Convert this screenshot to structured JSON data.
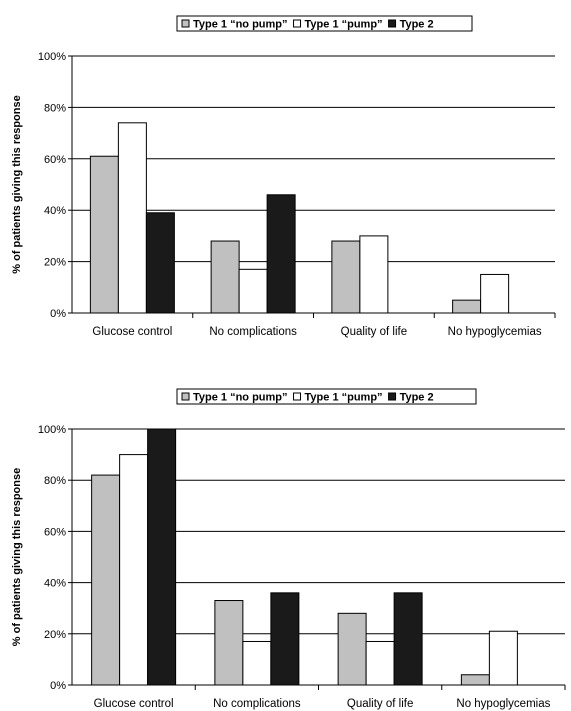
{
  "chart_data": [
    {
      "type": "bar",
      "categories": [
        "Glucose control",
        "No complications",
        "Quality of life",
        "No hypoglycemias"
      ],
      "series": [
        {
          "name": "Type 1 “no pump”",
          "color": "#c0c0c0",
          "values": [
            61,
            28,
            28,
            5
          ]
        },
        {
          "name": "Type 1 “pump”",
          "color": "#ffffff",
          "values": [
            74,
            17,
            30,
            15
          ]
        },
        {
          "name": "Type 2",
          "color": "#1a1a1a",
          "values": [
            39,
            46,
            0,
            0
          ]
        }
      ],
      "ylabel": "% of patients giving this response",
      "yticks": [
        "0%",
        "20%",
        "40%",
        "60%",
        "80%",
        "100%"
      ],
      "ylim": [
        0,
        100
      ],
      "grid": true,
      "legend": "top"
    },
    {
      "type": "bar",
      "categories": [
        "Glucose control",
        "No complications",
        "Quality of life",
        "No hypoglycemias"
      ],
      "series": [
        {
          "name": "Type 1 “no pump”",
          "color": "#c0c0c0",
          "values": [
            82,
            33,
            28,
            4
          ]
        },
        {
          "name": "Type 1 “pump”",
          "color": "#ffffff",
          "values": [
            90,
            17,
            17,
            21
          ]
        },
        {
          "name": "Type 2",
          "color": "#1a1a1a",
          "values": [
            100,
            36,
            36,
            0
          ]
        }
      ],
      "ylabel": "% of patients giving this response",
      "yticks": [
        "0%",
        "20%",
        "40%",
        "60%",
        "80%",
        "100%"
      ],
      "ylim": [
        0,
        100
      ],
      "grid": true,
      "legend": "top"
    }
  ]
}
